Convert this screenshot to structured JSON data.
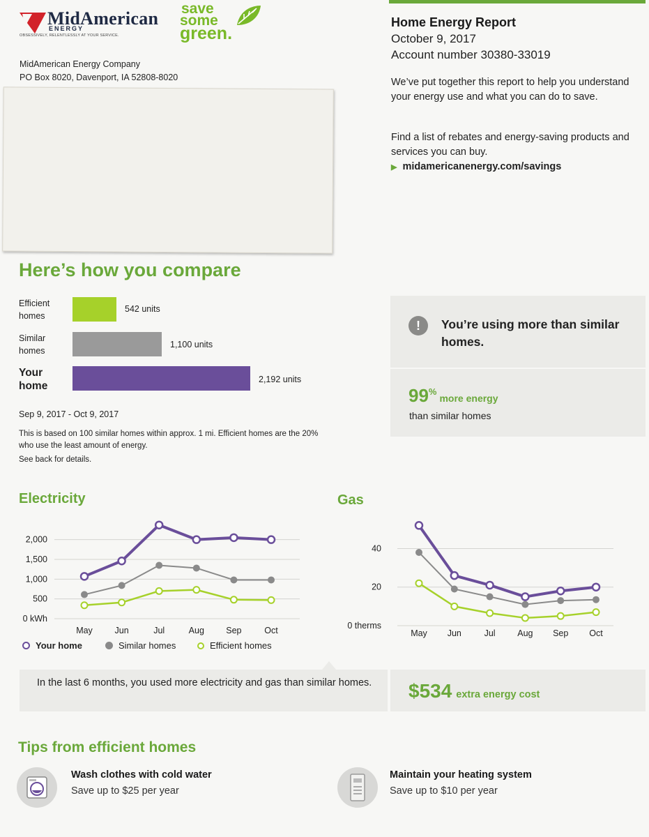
{
  "brand": {
    "name": "MidAmerican",
    "energy": "ENERGY",
    "tagline": "OBSESSIVELY, RELENTLESSLY AT YOUR SERVICE.",
    "campaign_logo": [
      "save",
      "some",
      "green."
    ]
  },
  "sender": {
    "company": "MidAmerican Energy Company",
    "address": "PO Box 8020, Davenport, IA 52808-8020"
  },
  "report": {
    "title": "Home Energy Report",
    "date": "October 9, 2017",
    "account": "Account number 30380-33019",
    "intro": "We’ve put together this report to help you understand your energy use and what you can do to save.",
    "rebates": "Find a list of rebates and energy-saving products and services you can buy.",
    "link": "midamericanenergy.com/savings"
  },
  "compare": {
    "heading": "Here’s how you compare",
    "rows": [
      {
        "label": "Efficient homes",
        "value": 542,
        "value_text": "542 units",
        "color": "#a6d12a"
      },
      {
        "label": "Similar homes",
        "value": 1100,
        "value_text": "1,100 units",
        "color": "#9a9a9a"
      },
      {
        "label": "Your home",
        "value": 2192,
        "value_text": "2,192 units",
        "color": "#6a4e9a"
      }
    ],
    "period": "Sep 9, 2017 - Oct 9, 2017",
    "note": "This is based on 100 similar homes within approx. 1 mi. Efficient homes are the 20% who use the least amount of energy.",
    "see_back": "See back for details."
  },
  "alert": {
    "icon": "exclamation-icon",
    "message": "You’re using more than similar homes.",
    "percent": "99",
    "percent_sign": "%",
    "more_label": "more energy",
    "than_label": "than similar homes"
  },
  "electricity_heading": "Electricity",
  "gas_heading": "Gas",
  "legend": {
    "your": "Your home",
    "similar": "Similar homes",
    "efficient": "Efficient homes"
  },
  "chart_data": [
    {
      "type": "line",
      "title": "Electricity",
      "x": [
        "May",
        "Jun",
        "Jul",
        "Aug",
        "Sep",
        "Oct"
      ],
      "y_ticks": [
        "2,000",
        "1,500",
        "1,000",
        "500",
        "0 kWh"
      ],
      "ylim": [
        0,
        2400
      ],
      "grid": true,
      "legend": "bottom",
      "series": [
        {
          "name": "Your home",
          "color": "#6a4e9a",
          "values": [
            1070,
            1460,
            2370,
            2000,
            2050,
            2000
          ]
        },
        {
          "name": "Similar homes",
          "color": "#8a8a8a",
          "values": [
            610,
            840,
            1350,
            1280,
            980,
            980
          ]
        },
        {
          "name": "Efficient homes",
          "color": "#a6d12a",
          "values": [
            340,
            410,
            700,
            730,
            480,
            470
          ]
        }
      ]
    },
    {
      "type": "line",
      "title": "Gas",
      "x": [
        "May",
        "Jun",
        "Jul",
        "Aug",
        "Sep",
        "Oct"
      ],
      "y_ticks": [
        "40",
        "20",
        "0 therms"
      ],
      "ylim": [
        0,
        55
      ],
      "grid": true,
      "series": [
        {
          "name": "Your home",
          "color": "#6a4e9a",
          "values": [
            52,
            26,
            21,
            15,
            18,
            20
          ]
        },
        {
          "name": "Similar homes",
          "color": "#8a8a8a",
          "values": [
            38,
            19,
            15,
            11,
            13,
            13.5
          ]
        },
        {
          "name": "Efficient homes",
          "color": "#a6d12a",
          "values": [
            22,
            10,
            6.5,
            4,
            5,
            7
          ]
        }
      ]
    }
  ],
  "summary": {
    "text": "In the last 6 months, you used more electricity and gas than similar homes.",
    "cost": "$534",
    "cost_label": "extra energy cost"
  },
  "tips": {
    "heading": "Tips from efficient homes",
    "items": [
      {
        "title": "Wash clothes with cold water",
        "subtitle": "Save up to $25 per year",
        "icon": "washing-machine-icon"
      },
      {
        "title": "Maintain your heating system",
        "subtitle": "Save up to $10 per year",
        "icon": "thermostat-icon"
      }
    ]
  }
}
